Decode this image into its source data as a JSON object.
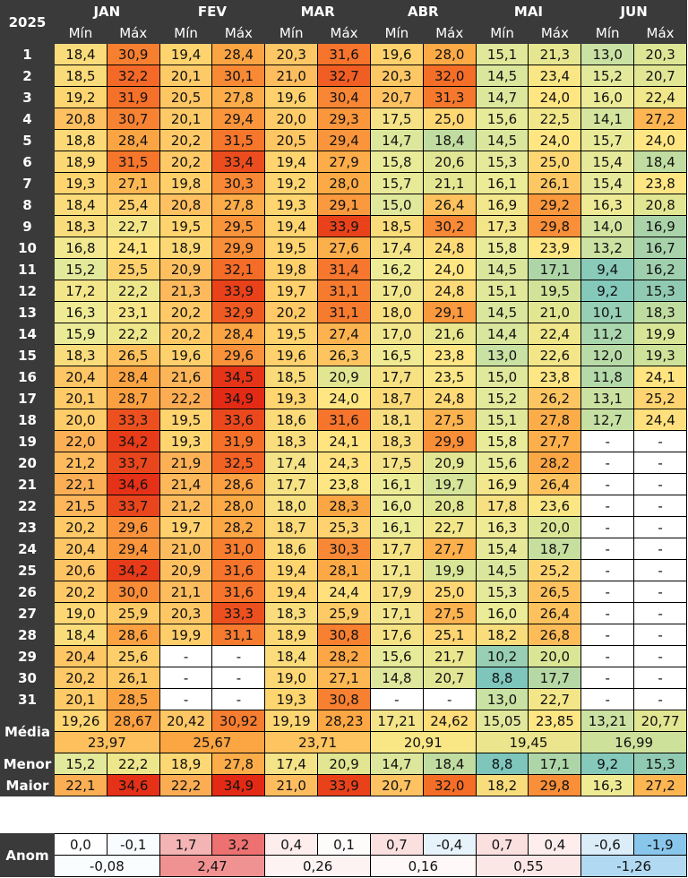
{
  "year": "2025",
  "sub_min": "Mín",
  "sub_max": "Máx",
  "months": [
    {
      "name": "JAN",
      "min": [
        "18,4",
        "18,5",
        "19,2",
        "20,8",
        "18,8",
        "18,9",
        "19,3",
        "18,4",
        "18,3",
        "16,8",
        "15,2",
        "17,2",
        "16,3",
        "15,9",
        "18,3",
        "20,4",
        "20,1",
        "20,0",
        "22,0",
        "21,2",
        "22,1",
        "21,5",
        "20,2",
        "20,4",
        "20,6",
        "20,2",
        "19,0",
        "18,4",
        "20,4",
        "20,2",
        "20,1"
      ],
      "max": [
        "30,9",
        "32,2",
        "31,9",
        "30,7",
        "28,4",
        "31,5",
        "27,1",
        "25,4",
        "22,7",
        "24,1",
        "25,5",
        "22,2",
        "23,1",
        "22,2",
        "26,5",
        "28,4",
        "28,7",
        "33,3",
        "34,2",
        "33,7",
        "34,6",
        "33,7",
        "29,6",
        "29,4",
        "34,2",
        "30,0",
        "25,9",
        "28,6",
        "25,6",
        "26,1",
        "28,5"
      ],
      "media_min": "19,26",
      "media_max": "28,67",
      "media": "23,97",
      "menor_min": "15,2",
      "menor_max": "22,2",
      "maior_min": "22,1",
      "maior_max": "34,6",
      "anom_min": "0,0",
      "anom_max": "-0,1",
      "anom": "-0,08"
    },
    {
      "name": "FEV",
      "min": [
        "19,4",
        "20,1",
        "20,5",
        "20,1",
        "20,2",
        "20,2",
        "19,8",
        "20,8",
        "19,5",
        "18,9",
        "20,9",
        "21,3",
        "20,2",
        "20,2",
        "19,6",
        "21,6",
        "22,2",
        "19,5",
        "19,3",
        "21,9",
        "21,4",
        "21,2",
        "19,7",
        "21,0",
        "20,9",
        "21,1",
        "20,3",
        "19,9",
        "-",
        "-",
        "-"
      ],
      "max": [
        "28,4",
        "30,1",
        "27,8",
        "29,4",
        "31,5",
        "33,4",
        "30,3",
        "27,8",
        "29,5",
        "29,9",
        "32,1",
        "33,9",
        "32,9",
        "28,4",
        "29,6",
        "34,5",
        "34,9",
        "33,6",
        "31,9",
        "32,5",
        "28,6",
        "28,0",
        "28,2",
        "31,0",
        "31,6",
        "31,6",
        "33,3",
        "31,1",
        "-",
        "-",
        "-"
      ],
      "media_min": "20,42",
      "media_max": "30,92",
      "media": "25,67",
      "menor_min": "18,9",
      "menor_max": "27,8",
      "maior_min": "22,2",
      "maior_max": "34,9",
      "anom_min": "1,7",
      "anom_max": "3,2",
      "anom": "2,47"
    },
    {
      "name": "MAR",
      "min": [
        "20,3",
        "21,0",
        "19,6",
        "20,0",
        "20,5",
        "19,4",
        "19,2",
        "19,3",
        "19,4",
        "19,5",
        "19,8",
        "19,7",
        "20,2",
        "19,5",
        "19,6",
        "18,5",
        "19,3",
        "18,6",
        "18,3",
        "17,4",
        "17,7",
        "18,0",
        "18,7",
        "18,6",
        "19,4",
        "19,4",
        "18,3",
        "18,9",
        "18,4",
        "19,0",
        "19,3"
      ],
      "max": [
        "31,6",
        "32,7",
        "30,4",
        "29,3",
        "29,4",
        "27,9",
        "28,0",
        "29,1",
        "33,9",
        "27,6",
        "31,4",
        "31,1",
        "31,1",
        "27,4",
        "26,3",
        "20,9",
        "24,0",
        "31,6",
        "24,1",
        "24,3",
        "23,8",
        "28,3",
        "25,3",
        "30,3",
        "28,1",
        "24,4",
        "25,9",
        "30,8",
        "28,2",
        "27,1",
        "30,8"
      ],
      "media_min": "19,19",
      "media_max": "28,23",
      "media": "23,71",
      "menor_min": "17,4",
      "menor_max": "20,9",
      "maior_min": "21,0",
      "maior_max": "33,9",
      "anom_min": "0,4",
      "anom_max": "0,1",
      "anom": "0,26"
    },
    {
      "name": "ABR",
      "min": [
        "19,6",
        "20,3",
        "20,7",
        "17,5",
        "14,7",
        "15,8",
        "15,7",
        "15,0",
        "18,5",
        "17,4",
        "16,2",
        "17,0",
        "18,0",
        "17,0",
        "16,5",
        "17,7",
        "18,7",
        "18,1",
        "18,3",
        "17,5",
        "16,1",
        "16,0",
        "16,1",
        "17,7",
        "17,1",
        "17,9",
        "17,1",
        "17,6",
        "15,6",
        "14,8",
        "-"
      ],
      "max": [
        "28,0",
        "32,0",
        "31,3",
        "25,0",
        "18,4",
        "20,6",
        "21,1",
        "26,4",
        "30,2",
        "24,8",
        "24,0",
        "24,8",
        "29,1",
        "21,6",
        "23,8",
        "23,5",
        "24,8",
        "27,5",
        "29,9",
        "20,9",
        "19,7",
        "20,8",
        "22,7",
        "27,7",
        "19,9",
        "25,0",
        "27,5",
        "25,1",
        "21,7",
        "20,7",
        "-"
      ],
      "media_min": "17,21",
      "media_max": "24,62",
      "media": "20,91",
      "menor_min": "14,7",
      "menor_max": "18,4",
      "maior_min": "20,7",
      "maior_max": "32,0",
      "anom_min": "0,7",
      "anom_max": "-0,4",
      "anom": "0,16"
    },
    {
      "name": "MAI",
      "min": [
        "15,1",
        "14,5",
        "14,7",
        "15,6",
        "14,5",
        "15,3",
        "16,1",
        "16,9",
        "17,3",
        "15,8",
        "14,5",
        "15,1",
        "14,5",
        "14,4",
        "13,0",
        "15,0",
        "15,2",
        "15,1",
        "15,8",
        "15,6",
        "16,9",
        "17,8",
        "16,3",
        "15,4",
        "14,5",
        "15,3",
        "16,0",
        "18,2",
        "10,2",
        "8,8",
        "13,0"
      ],
      "max": [
        "21,3",
        "23,4",
        "24,0",
        "22,5",
        "24,0",
        "25,0",
        "26,1",
        "29,2",
        "29,8",
        "23,9",
        "17,1",
        "19,5",
        "21,0",
        "22,4",
        "22,6",
        "23,8",
        "26,2",
        "27,8",
        "27,7",
        "28,2",
        "26,4",
        "23,6",
        "20,0",
        "18,7",
        "25,2",
        "26,5",
        "26,4",
        "26,8",
        "20,0",
        "17,7",
        "22,7"
      ],
      "media_min": "15,05",
      "media_max": "23,85",
      "media": "19,45",
      "menor_min": "8,8",
      "menor_max": "17,1",
      "maior_min": "18,2",
      "maior_max": "29,8",
      "anom_min": "0,7",
      "anom_max": "0,4",
      "anom": "0,55"
    },
    {
      "name": "JUN",
      "min": [
        "13,0",
        "15,2",
        "16,0",
        "14,1",
        "15,7",
        "15,4",
        "15,4",
        "16,3",
        "14,0",
        "13,2",
        "9,4",
        "9,2",
        "10,1",
        "11,2",
        "12,0",
        "11,8",
        "13,1",
        "12,7",
        "-",
        "-",
        "-",
        "-",
        "-",
        "-",
        "-",
        "-",
        "-",
        "-",
        "-",
        "-",
        "-"
      ],
      "max": [
        "20,3",
        "20,7",
        "22,4",
        "27,2",
        "24,0",
        "18,4",
        "23,8",
        "20,8",
        "16,9",
        "16,7",
        "16,2",
        "15,3",
        "18,3",
        "19,9",
        "19,3",
        "24,1",
        "25,2",
        "24,4",
        "-",
        "-",
        "-",
        "-",
        "-",
        "-",
        "-",
        "-",
        "-",
        "-",
        "-",
        "-",
        "-"
      ],
      "media_min": "13,21",
      "media_max": "20,77",
      "media": "16,99",
      "menor_min": "9,2",
      "menor_max": "15,3",
      "maior_min": "16,3",
      "maior_max": "27,2",
      "anom_min": "-0,6",
      "anom_max": "-1,9",
      "anom": "-1,26"
    }
  ],
  "labels": {
    "media": "Média",
    "menor": "Menor",
    "maior": "Maior",
    "anom": "Anom"
  },
  "colors": {
    "header_bg": "#3a3a3a",
    "year_text": "#2bb3ff",
    "empty": "#ffffff"
  }
}
